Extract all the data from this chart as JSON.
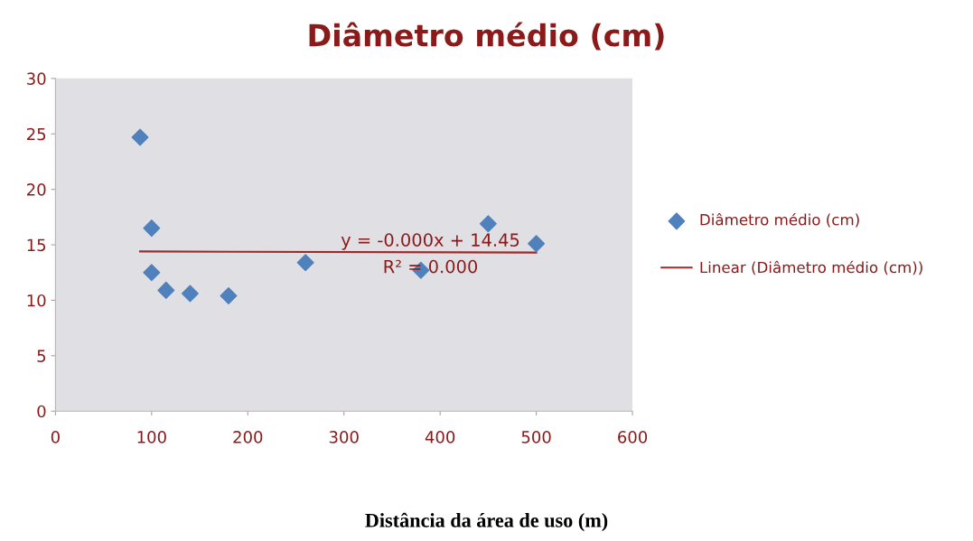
{
  "chart_data": {
    "type": "scatter",
    "title": "Diâmetro médio (cm)",
    "xlabel": "Distância da área de uso (m)",
    "series": [
      {
        "name": "Diâmetro médio (cm)",
        "type": "scatter",
        "color": "#4f81bd",
        "marker": "diamond",
        "x": [
          88,
          100,
          100,
          115,
          140,
          180,
          260,
          380,
          450,
          500
        ],
        "values": [
          24.7,
          16.5,
          12.5,
          10.9,
          10.6,
          10.4,
          13.4,
          12.7,
          16.9,
          15.1
        ]
      },
      {
        "name": "Linear (Diâmetro médio (cm))",
        "type": "line",
        "color": "#9b2c2c",
        "marker": "none",
        "line_style": "solid",
        "x": [
          88,
          500
        ],
        "values": [
          14.4,
          14.3
        ]
      }
    ],
    "annotations": [
      "y = -0.000x + 14.45",
      "R² = 0.000"
    ],
    "xlim": [
      0,
      600
    ],
    "xticks": [
      0,
      100,
      200,
      300,
      400,
      500,
      600
    ],
    "ylim": [
      0,
      30
    ],
    "yticks": [
      0,
      5,
      10,
      15,
      20,
      25,
      30
    ],
    "grid": false,
    "legend": "right"
  }
}
